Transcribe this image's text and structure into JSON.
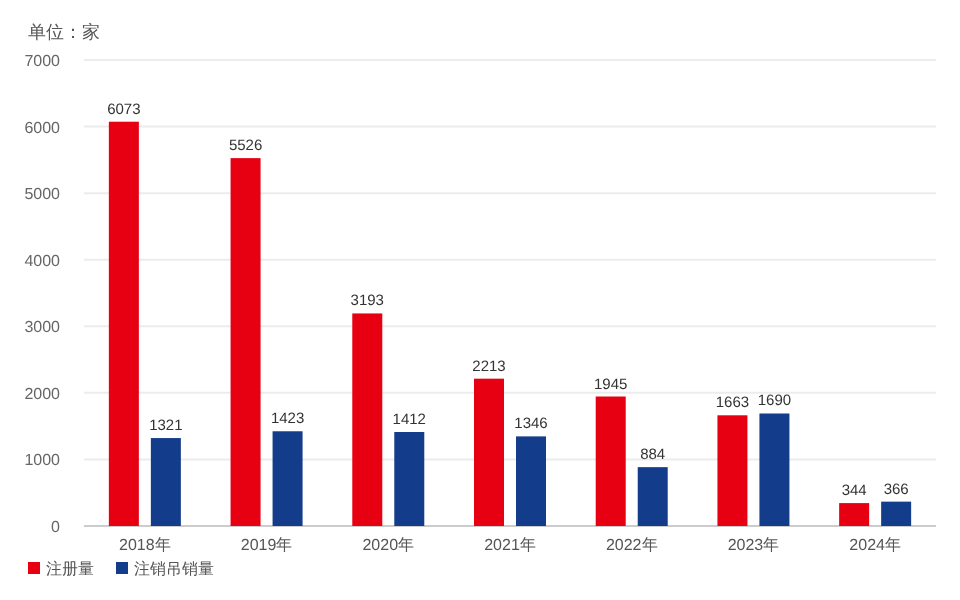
{
  "chart_data": {
    "type": "bar",
    "annotations": [
      "单位：家"
    ],
    "categories": [
      "2018年",
      "2019年",
      "2020年",
      "2021年",
      "2022年",
      "2023年",
      "2024年"
    ],
    "series": [
      {
        "name": "注册量",
        "color": "#e60012",
        "values": [
          6073,
          5526,
          3193,
          2213,
          1945,
          1663,
          344
        ]
      },
      {
        "name": "注销吊销量",
        "color": "#133c8b",
        "values": [
          1321,
          1423,
          1412,
          1346,
          884,
          1690,
          366
        ]
      }
    ],
    "ylim": [
      0,
      7000
    ],
    "yticks": [
      0,
      1000,
      2000,
      3000,
      4000,
      5000,
      6000,
      7000
    ],
    "data_labels": true,
    "grid": "y",
    "legend": "bottom left"
  }
}
